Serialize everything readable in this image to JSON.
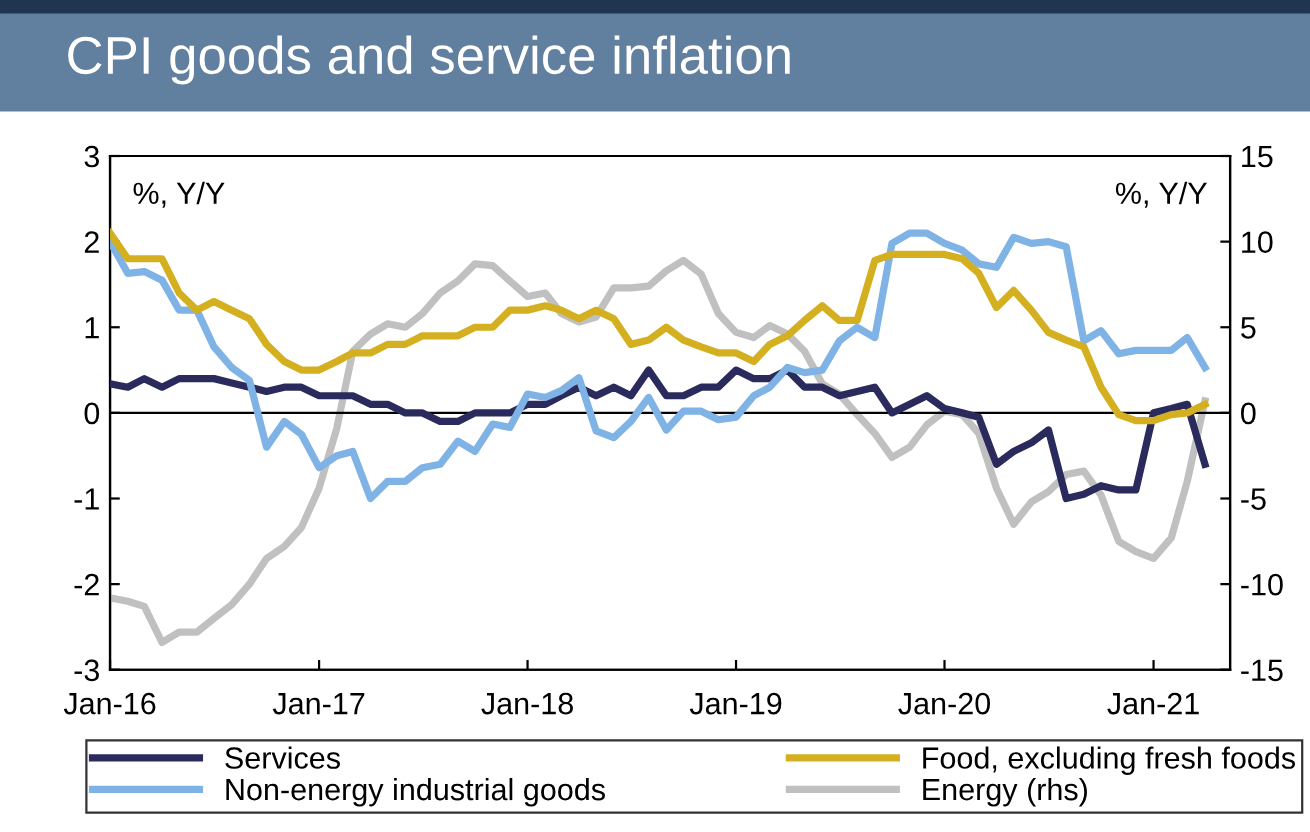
{
  "chart_data": {
    "type": "line",
    "title": "CPI goods and service inflation",
    "ylabel": "%, Y/Y",
    "y2label": "%, Y/Y",
    "x": [
      "2016-01",
      "2016-02",
      "2016-03",
      "2016-04",
      "2016-05",
      "2016-06",
      "2016-07",
      "2016-08",
      "2016-09",
      "2016-10",
      "2016-11",
      "2016-12",
      "2017-01",
      "2017-02",
      "2017-03",
      "2017-04",
      "2017-05",
      "2017-06",
      "2017-07",
      "2017-08",
      "2017-09",
      "2017-10",
      "2017-11",
      "2017-12",
      "2018-01",
      "2018-02",
      "2018-03",
      "2018-04",
      "2018-05",
      "2018-06",
      "2018-07",
      "2018-08",
      "2018-09",
      "2018-10",
      "2018-11",
      "2018-12",
      "2019-01",
      "2019-02",
      "2019-03",
      "2019-04",
      "2019-05",
      "2019-06",
      "2019-07",
      "2019-08",
      "2019-09",
      "2019-10",
      "2019-11",
      "2019-12",
      "2020-01",
      "2020-02",
      "2020-03",
      "2020-04",
      "2020-05",
      "2020-06",
      "2020-07",
      "2020-08",
      "2020-09",
      "2020-10",
      "2020-11",
      "2020-12",
      "2021-01",
      "2021-02",
      "2021-03",
      "2021-04"
    ],
    "series": [
      {
        "name": "Services",
        "color": "#2b2a5c",
        "values": [
          0.34,
          0.3,
          0.4,
          0.3,
          0.4,
          0.4,
          0.4,
          0.35,
          0.3,
          0.25,
          0.3,
          0.3,
          0.2,
          0.2,
          0.2,
          0.1,
          0.1,
          0.0,
          0.0,
          -0.1,
          -0.1,
          0.0,
          0.0,
          0.0,
          0.1,
          0.1,
          0.2,
          0.3,
          0.2,
          0.3,
          0.2,
          0.5,
          0.2,
          0.2,
          0.3,
          0.3,
          0.5,
          0.4,
          0.4,
          0.5,
          0.3,
          0.3,
          0.2,
          0.25,
          0.3,
          0.0,
          0.1,
          0.2,
          0.05,
          0.0,
          -0.05,
          -0.6,
          -0.45,
          -0.35,
          -0.2,
          -1.0,
          -0.95,
          -0.85,
          -0.9,
          -0.9,
          0.0,
          0.05,
          0.1,
          -0.6
        ]
      },
      {
        "name": "Non-energy industrial goods",
        "color": "#7fb2e5",
        "values": [
          2.0,
          1.63,
          1.65,
          1.55,
          1.2,
          1.2,
          0.77,
          0.53,
          0.38,
          -0.4,
          -0.1,
          -0.25,
          -0.64,
          -0.5,
          -0.45,
          -1.0,
          -0.8,
          -0.8,
          -0.64,
          -0.6,
          -0.33,
          -0.45,
          -0.13,
          -0.17,
          0.22,
          0.18,
          0.26,
          0.41,
          -0.21,
          -0.29,
          -0.1,
          0.18,
          -0.2,
          0.02,
          0.02,
          -0.08,
          -0.05,
          0.2,
          0.3,
          0.53,
          0.47,
          0.5,
          0.84,
          1.0,
          0.88,
          1.98,
          2.1,
          2.1,
          1.98,
          1.9,
          1.74,
          1.7,
          2.05,
          1.98,
          2.0,
          1.94,
          0.84,
          0.96,
          0.69,
          0.73,
          0.73,
          0.73,
          0.88,
          0.53
        ]
      },
      {
        "name": "Food, excluding fresh foods",
        "color": "#d4b020",
        "values": [
          2.1,
          1.8,
          1.8,
          1.8,
          1.4,
          1.2,
          1.3,
          1.2,
          1.1,
          0.8,
          0.6,
          0.5,
          0.5,
          0.6,
          0.7,
          0.7,
          0.8,
          0.8,
          0.9,
          0.9,
          0.9,
          1.0,
          1.0,
          1.2,
          1.2,
          1.25,
          1.2,
          1.1,
          1.2,
          1.1,
          0.8,
          0.85,
          1.0,
          0.85,
          0.77,
          0.7,
          0.7,
          0.6,
          0.8,
          0.9,
          1.08,
          1.25,
          1.08,
          1.08,
          1.78,
          1.85,
          1.85,
          1.85,
          1.85,
          1.8,
          1.63,
          1.23,
          1.43,
          1.2,
          0.94,
          0.85,
          0.77,
          0.3,
          -0.02,
          -0.09,
          -0.09,
          -0.02,
          0.0,
          0.1
        ]
      },
      {
        "name": "Energy (rhs)",
        "color": "#c0c0c0",
        "axis": "y2",
        "values": [
          -10.8,
          -11,
          -11.3,
          -13.4,
          -12.8,
          -12.8,
          -12,
          -11.2,
          -10,
          -8.5,
          -7.8,
          -6.7,
          -4.4,
          -0.9,
          3.6,
          4.6,
          5.2,
          5.0,
          5.8,
          7.0,
          7.7,
          8.7,
          8.6,
          7.7,
          6.8,
          7.0,
          5.8,
          5.3,
          5.6,
          7.3,
          7.3,
          7.4,
          8.3,
          8.9,
          8.1,
          5.8,
          4.7,
          4.4,
          5.1,
          4.6,
          3.6,
          1.7,
          1.1,
          -0.1,
          -1.2,
          -2.6,
          -2.0,
          -0.7,
          0.1,
          -0.1,
          -1.2,
          -4.4,
          -6.5,
          -5.2,
          -4.6,
          -3.6,
          -3.4,
          -4.8,
          -7.5,
          -8.1,
          -8.5,
          -7.3,
          -4.0,
          0.7
        ]
      }
    ],
    "xlim": [
      "2016-01",
      "2021-05-15"
    ],
    "xticks": [
      {
        "value": "2016-01",
        "label": "Jan-16"
      },
      {
        "value": "2017-01",
        "label": "Jan-17"
      },
      {
        "value": "2018-01",
        "label": "Jan-18"
      },
      {
        "value": "2019-01",
        "label": "Jan-19"
      },
      {
        "value": "2020-01",
        "label": "Jan-20"
      },
      {
        "value": "2021-01",
        "label": "Jan-21"
      }
    ],
    "ylim": [
      -3,
      3
    ],
    "yticks": [
      -3,
      -2,
      -1,
      0,
      1,
      2,
      3
    ],
    "y2lim": [
      -15,
      15
    ],
    "y2ticks": [
      -15,
      -10,
      -5,
      0,
      5,
      10,
      15
    ],
    "ref_lines": [
      {
        "axis": "y",
        "value": 0,
        "color": "#000000"
      }
    ],
    "grid": false,
    "legend": "bottom",
    "marker": "none",
    "line_style": "solid"
  }
}
